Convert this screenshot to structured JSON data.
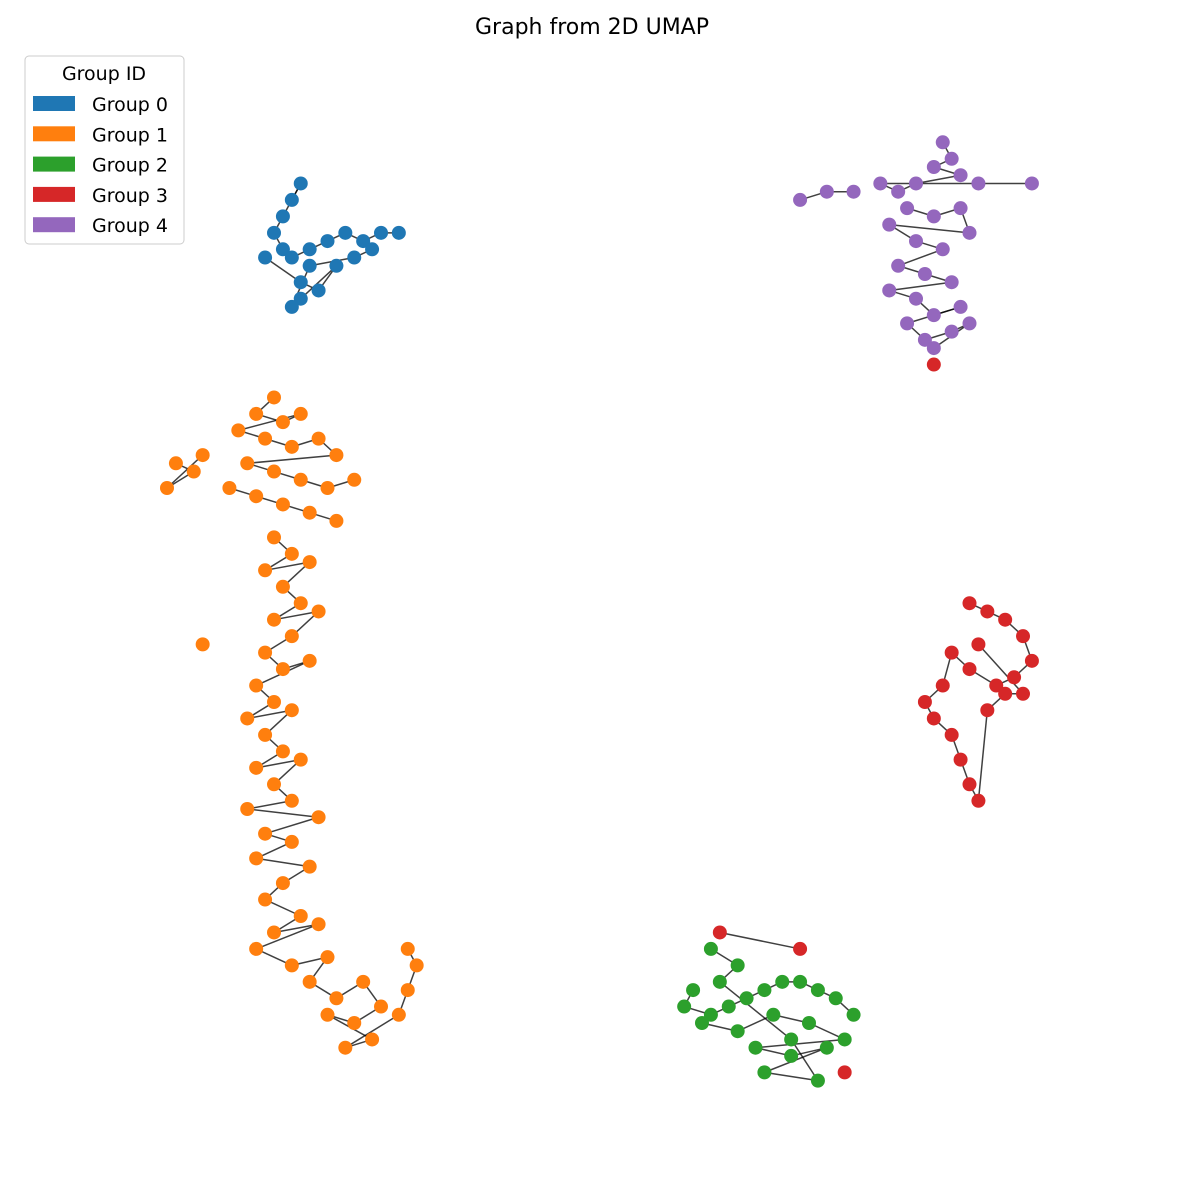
{
  "chart_data": {
    "type": "scatter",
    "title": "Graph from 2D UMAP",
    "legend": {
      "title": "Group ID",
      "placement": "top-left",
      "entries": [
        {
          "label": "Group 0",
          "color": "#1f77b4"
        },
        {
          "label": "Group 1",
          "color": "#ff7f0e"
        },
        {
          "label": "Group 2",
          "color": "#2ca02c"
        },
        {
          "label": "Group 3",
          "color": "#d62728"
        },
        {
          "label": "Group 4",
          "color": "#9467bd"
        }
      ]
    },
    "axes_visible": false,
    "grid": false,
    "series": [
      {
        "name": "Group 0",
        "color": "#1f77b4",
        "points": [
          [
            2.6,
            9.3
          ],
          [
            2.7,
            9.5
          ],
          [
            2.5,
            9.1
          ],
          [
            2.4,
            8.9
          ],
          [
            2.5,
            8.7
          ],
          [
            2.6,
            8.6
          ],
          [
            2.8,
            8.7
          ],
          [
            3.0,
            8.8
          ],
          [
            3.2,
            8.9
          ],
          [
            3.4,
            8.8
          ],
          [
            3.6,
            8.9
          ],
          [
            3.8,
            8.9
          ],
          [
            2.3,
            8.6
          ],
          [
            2.7,
            8.3
          ],
          [
            2.9,
            8.2
          ],
          [
            3.1,
            8.5
          ],
          [
            2.7,
            8.1
          ],
          [
            2.6,
            8.0
          ],
          [
            2.8,
            8.5
          ],
          [
            3.3,
            8.6
          ],
          [
            3.5,
            8.7
          ]
        ]
      },
      {
        "name": "Group 1",
        "color": "#ff7f0e",
        "points": [
          [
            2.4,
            6.9
          ],
          [
            2.2,
            6.7
          ],
          [
            2.5,
            6.6
          ],
          [
            2.7,
            6.7
          ],
          [
            2.0,
            6.5
          ],
          [
            2.3,
            6.4
          ],
          [
            2.6,
            6.3
          ],
          [
            2.9,
            6.4
          ],
          [
            3.1,
            6.2
          ],
          [
            2.1,
            6.1
          ],
          [
            2.4,
            6.0
          ],
          [
            2.7,
            5.9
          ],
          [
            3.0,
            5.8
          ],
          [
            3.3,
            5.9
          ],
          [
            1.9,
            5.8
          ],
          [
            2.2,
            5.7
          ],
          [
            2.5,
            5.6
          ],
          [
            2.8,
            5.5
          ],
          [
            3.1,
            5.4
          ],
          [
            1.3,
            6.1
          ],
          [
            1.5,
            6.0
          ],
          [
            1.2,
            5.8
          ],
          [
            1.6,
            6.2
          ],
          [
            2.4,
            5.2
          ],
          [
            2.6,
            5.0
          ],
          [
            2.3,
            4.8
          ],
          [
            2.8,
            4.9
          ],
          [
            2.5,
            4.6
          ],
          [
            2.7,
            4.4
          ],
          [
            2.4,
            4.2
          ],
          [
            2.9,
            4.3
          ],
          [
            2.6,
            4.0
          ],
          [
            2.3,
            3.8
          ],
          [
            2.5,
            3.6
          ],
          [
            2.8,
            3.7
          ],
          [
            2.2,
            3.4
          ],
          [
            2.4,
            3.2
          ],
          [
            2.1,
            3.0
          ],
          [
            2.6,
            3.1
          ],
          [
            2.3,
            2.8
          ],
          [
            2.5,
            2.6
          ],
          [
            2.2,
            2.4
          ],
          [
            2.7,
            2.5
          ],
          [
            2.4,
            2.2
          ],
          [
            2.6,
            2.0
          ],
          [
            2.1,
            1.9
          ],
          [
            2.9,
            1.8
          ],
          [
            2.3,
            1.6
          ],
          [
            2.6,
            1.5
          ],
          [
            2.2,
            1.3
          ],
          [
            2.8,
            1.2
          ],
          [
            2.5,
            1.0
          ],
          [
            2.3,
            0.8
          ],
          [
            2.7,
            0.6
          ],
          [
            2.4,
            0.4
          ],
          [
            2.9,
            0.5
          ],
          [
            2.2,
            0.2
          ],
          [
            2.6,
            0.0
          ],
          [
            3.0,
            0.1
          ],
          [
            2.8,
            -0.2
          ],
          [
            3.1,
            -0.4
          ],
          [
            3.4,
            -0.2
          ],
          [
            3.6,
            -0.5
          ],
          [
            3.3,
            -0.7
          ],
          [
            3.0,
            -0.6
          ],
          [
            3.5,
            -0.9
          ],
          [
            3.2,
            -1.0
          ],
          [
            3.8,
            -0.6
          ],
          [
            3.9,
            -0.3
          ],
          [
            4.0,
            0.0
          ],
          [
            3.9,
            0.2
          ],
          [
            1.6,
            3.9
          ]
        ]
      },
      {
        "name": "Group 2",
        "color": "#2ca02c",
        "points": [
          [
            7.1,
            -0.3
          ],
          [
            7.0,
            -0.5
          ],
          [
            7.3,
            -0.6
          ],
          [
            7.5,
            -0.5
          ],
          [
            7.7,
            -0.4
          ],
          [
            7.9,
            -0.3
          ],
          [
            8.1,
            -0.2
          ],
          [
            8.3,
            -0.2
          ],
          [
            8.5,
            -0.3
          ],
          [
            8.7,
            -0.4
          ],
          [
            8.9,
            -0.6
          ],
          [
            7.2,
            -0.7
          ],
          [
            7.6,
            -0.8
          ],
          [
            8.0,
            -0.6
          ],
          [
            8.4,
            -0.7
          ],
          [
            8.8,
            -0.9
          ],
          [
            7.8,
            -1.0
          ],
          [
            8.2,
            -1.1
          ],
          [
            8.6,
            -1.0
          ],
          [
            7.9,
            -1.3
          ],
          [
            8.5,
            -1.4
          ],
          [
            8.2,
            -0.9
          ],
          [
            7.4,
            -0.2
          ],
          [
            7.6,
            0.0
          ],
          [
            7.3,
            0.2
          ]
        ]
      },
      {
        "name": "Group 3",
        "color": "#d62728",
        "points": [
          [
            10.2,
            4.4
          ],
          [
            10.4,
            4.3
          ],
          [
            10.6,
            4.2
          ],
          [
            10.8,
            4.0
          ],
          [
            10.9,
            3.7
          ],
          [
            10.7,
            3.5
          ],
          [
            10.5,
            3.4
          ],
          [
            10.2,
            3.6
          ],
          [
            10.0,
            3.8
          ],
          [
            9.9,
            3.4
          ],
          [
            9.7,
            3.2
          ],
          [
            9.8,
            3.0
          ],
          [
            10.0,
            2.8
          ],
          [
            10.1,
            2.5
          ],
          [
            10.2,
            2.2
          ],
          [
            10.3,
            2.0
          ],
          [
            10.4,
            3.1
          ],
          [
            10.6,
            3.3
          ],
          [
            10.8,
            3.3
          ],
          [
            10.3,
            3.9
          ],
          [
            7.4,
            0.4
          ],
          [
            8.3,
            0.2
          ],
          [
            8.8,
            -1.3
          ],
          [
            9.8,
            7.3
          ]
        ]
      },
      {
        "name": "Group 4",
        "color": "#9467bd",
        "points": [
          [
            9.9,
            10.0
          ],
          [
            10.0,
            9.8
          ],
          [
            9.8,
            9.7
          ],
          [
            10.1,
            9.6
          ],
          [
            9.6,
            9.5
          ],
          [
            9.4,
            9.4
          ],
          [
            9.2,
            9.5
          ],
          [
            10.3,
            9.5
          ],
          [
            10.9,
            9.5
          ],
          [
            9.5,
            9.2
          ],
          [
            9.8,
            9.1
          ],
          [
            10.1,
            9.2
          ],
          [
            10.2,
            8.9
          ],
          [
            9.3,
            9.0
          ],
          [
            9.6,
            8.8
          ],
          [
            9.9,
            8.7
          ],
          [
            9.4,
            8.5
          ],
          [
            9.7,
            8.4
          ],
          [
            10.0,
            8.3
          ],
          [
            9.3,
            8.2
          ],
          [
            9.6,
            8.1
          ],
          [
            9.8,
            7.9
          ],
          [
            10.1,
            8.0
          ],
          [
            9.5,
            7.8
          ],
          [
            9.7,
            7.6
          ],
          [
            10.0,
            7.7
          ],
          [
            10.2,
            7.8
          ],
          [
            9.8,
            7.5
          ],
          [
            8.3,
            9.3
          ],
          [
            8.6,
            9.4
          ],
          [
            8.9,
            9.4
          ]
        ]
      }
    ]
  }
}
